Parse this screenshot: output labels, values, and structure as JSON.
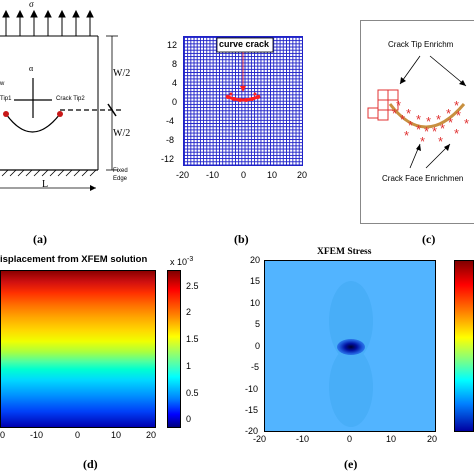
{
  "panel_a": {
    "label": "(a)",
    "sigma": "σ",
    "half_height_top": "W/2",
    "half_height_bottom": "W/2",
    "length": "L",
    "fixed_edge_line1": "Fixed",
    "fixed_edge_line2": "Edge",
    "tip1": "Tip1",
    "tip2": "Crack Tip2",
    "alpha": "α",
    "w_label": "w"
  },
  "panel_b": {
    "label": "(b)",
    "annotation": "curve crack",
    "y_ticks": [
      "12",
      "8",
      "4",
      "0",
      "-4",
      "-8",
      "-12"
    ],
    "x_ticks": [
      "-20",
      "-10",
      "0",
      "10",
      "20"
    ]
  },
  "panel_c": {
    "label": "(c)",
    "tip_enrichment": "Crack Tip Enrichm",
    "face_enrichment": "Crack Face Enrichmen"
  },
  "panel_d": {
    "label": "(d)",
    "title": "isplacement from XFEM solution",
    "x_ticks": [
      "0",
      "-10",
      "0",
      "10",
      "20"
    ],
    "colorbar_exponent": "x 10",
    "colorbar_exponent_power": "-3",
    "colorbar_ticks": [
      "2.5",
      "2",
      "1.5",
      "1",
      "0.5",
      "0"
    ]
  },
  "panel_e": {
    "label": "(e)",
    "title": "XFEM Stress",
    "y_ticks": [
      "20",
      "15",
      "10",
      "5",
      "0",
      "-5",
      "-10",
      "-15",
      "-20"
    ],
    "x_ticks": [
      "-20",
      "-10",
      "0",
      "10",
      "20"
    ]
  },
  "colors": {
    "mesh": "#1f22c8",
    "crack": "#ff2020",
    "stress_bg": "#52b4ff"
  }
}
